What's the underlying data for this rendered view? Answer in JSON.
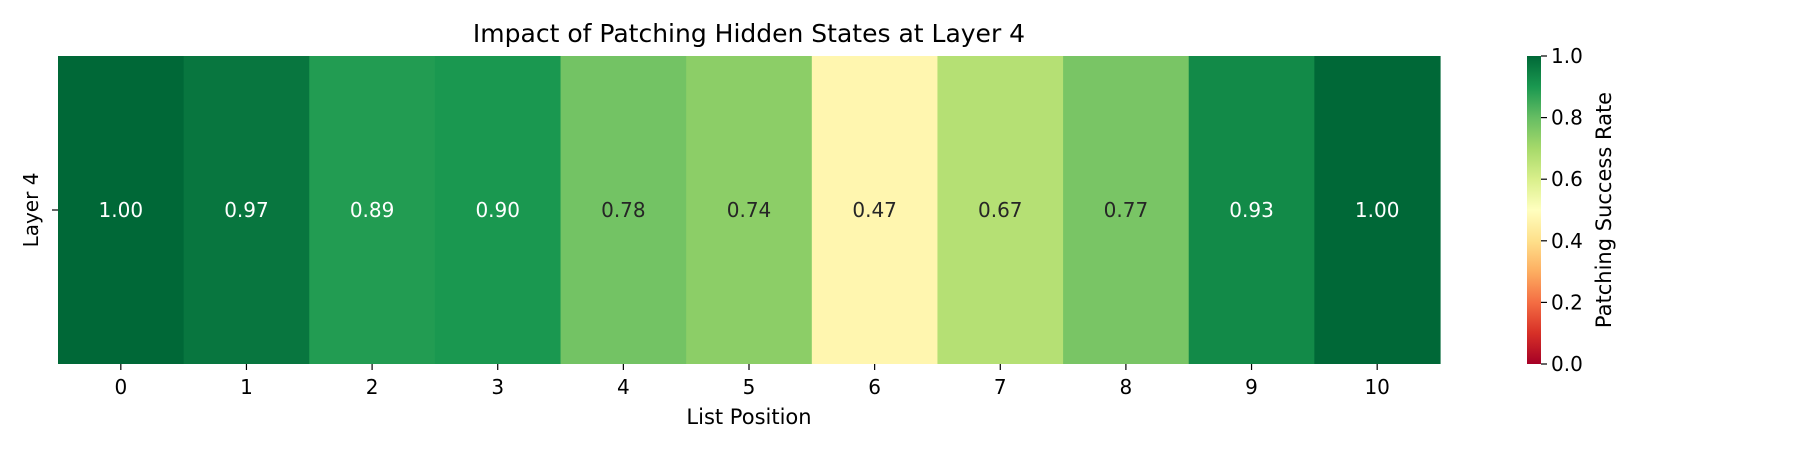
{
  "chart_data": {
    "type": "heatmap",
    "title": "Impact of Patching Hidden States at Layer 4",
    "xlabel": "List Position",
    "ylabel": "",
    "x_categories": [
      "0",
      "1",
      "2",
      "3",
      "4",
      "5",
      "6",
      "7",
      "8",
      "9",
      "10"
    ],
    "y_categories": [
      "Layer 4"
    ],
    "values": [
      1.0,
      0.97,
      0.89,
      0.9,
      0.78,
      0.74,
      0.47,
      0.67,
      0.77,
      0.93,
      1.0
    ],
    "value_labels": [
      "1.00",
      "0.97",
      "0.89",
      "0.90",
      "0.78",
      "0.74",
      "0.47",
      "0.67",
      "0.77",
      "0.93",
      "1.00"
    ],
    "colormap": "RdYlGn",
    "vmin": 0.0,
    "vmax": 1.0,
    "colorbar": {
      "label": "Patching Success Rate",
      "ticks": [
        0.0,
        0.2,
        0.4,
        0.6,
        0.8,
        1.0
      ],
      "tick_labels": [
        "0.0",
        "0.2",
        "0.4",
        "0.6",
        "0.8",
        "1.0"
      ]
    }
  }
}
